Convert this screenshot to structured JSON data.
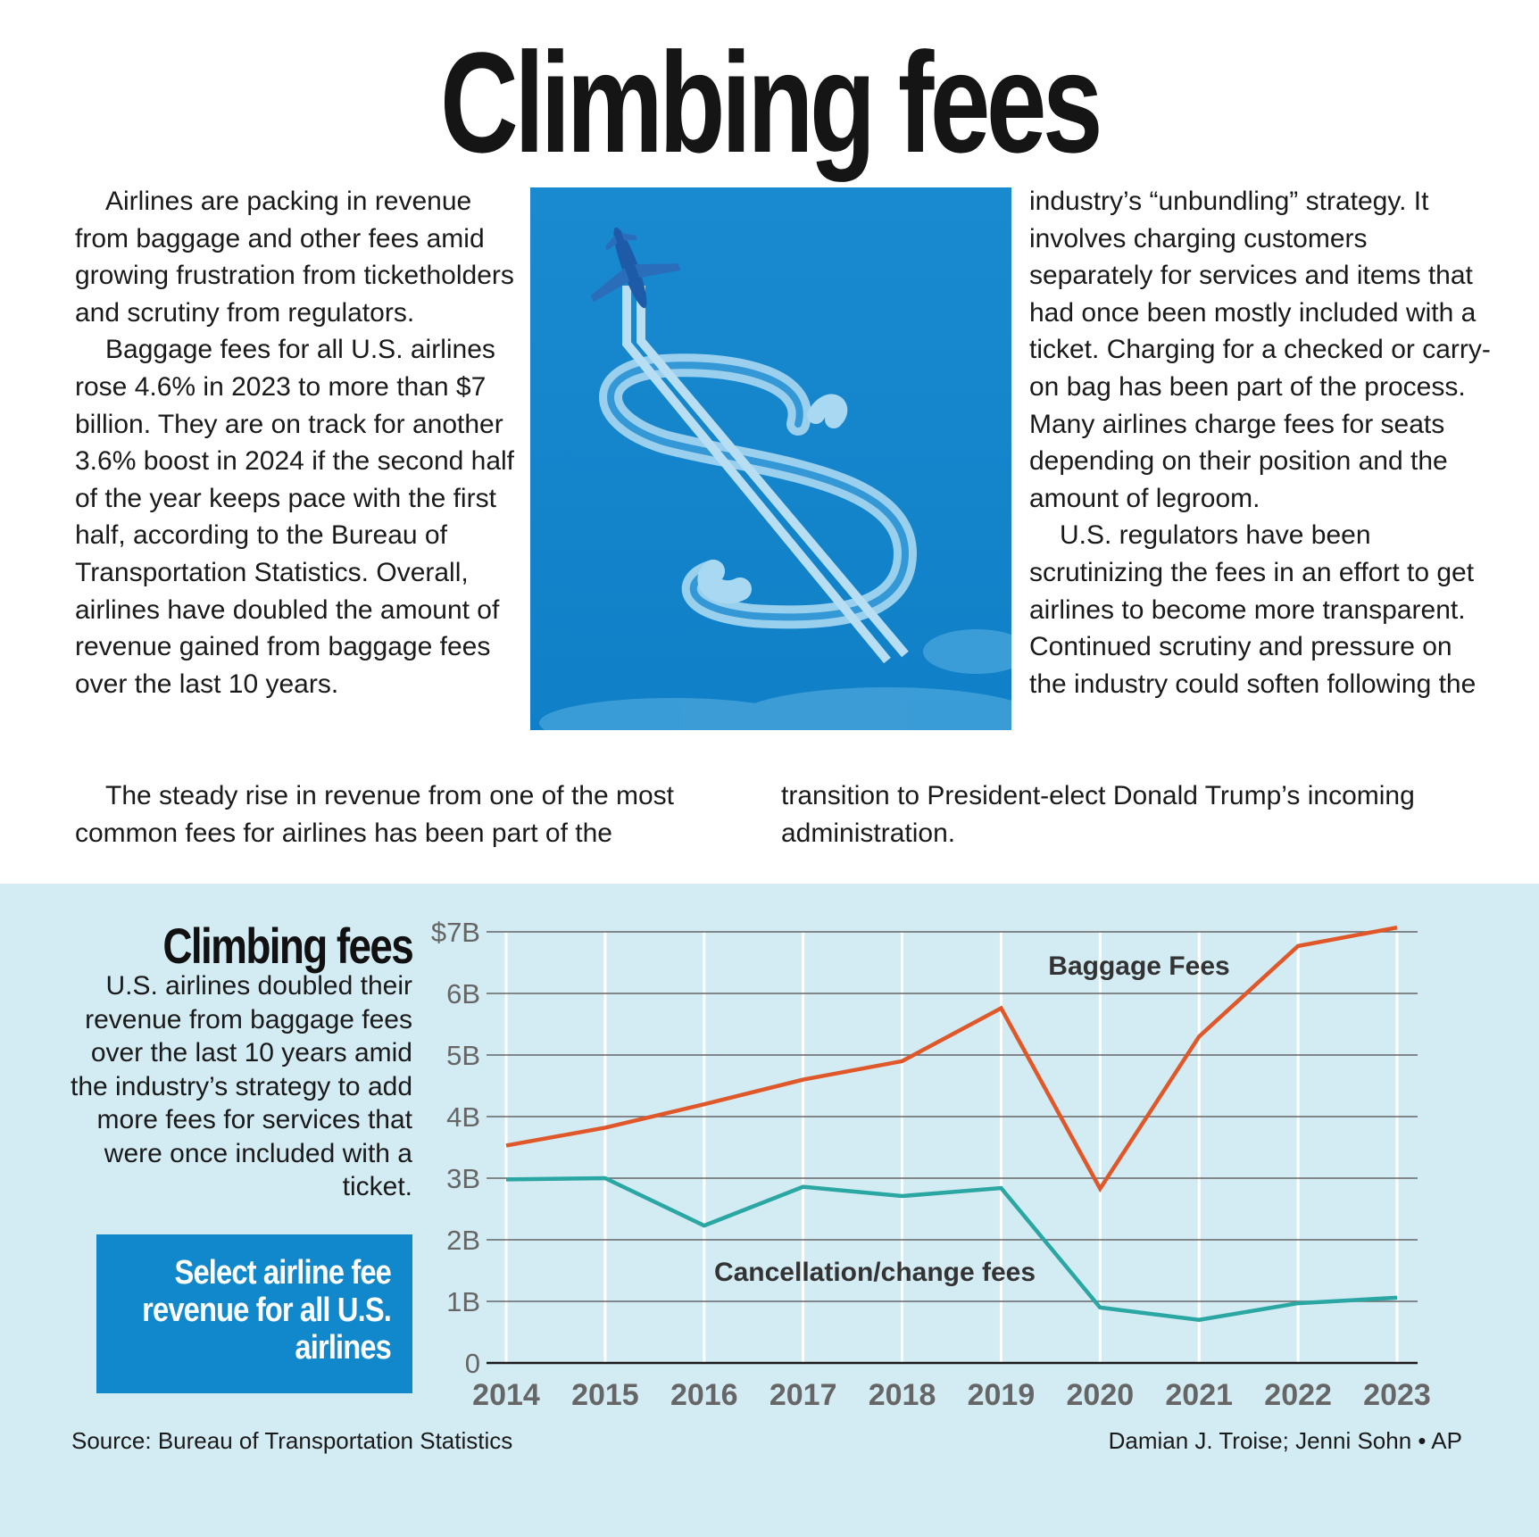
{
  "headline": "Climbing fees",
  "article": {
    "left_paragraphs": [
      "Airlines are packing in revenue from baggage and other fees amid growing frustration from ticketholders and scrutiny from regulators.",
      "Baggage fees for all U.S. airlines rose 4.6% in 2023 to more than $7 billion. They are on track for another 3.6% boost in 2024 if the second half of the year keeps pace with the first half, according to the Bureau of Transportation Statistics. Overall, airlines have doubled the amount of revenue gained from baggage fees over the last 10 years."
    ],
    "bottom_left": "The steady rise in revenue from one of the most common fees for airlines has been part of the",
    "right_paragraphs": [
      "industry’s “unbundling” strategy. It involves charging customers separately for services and items that had once been mostly included with a ticket. Charging for a checked or carry-on bag has been part of the process. Many airlines charge fees for seats depending on their position and the amount of legroom.",
      "U.S. regulators have been scrutinizing the fees in an effort to get airlines to become more transparent. Continued scrutiny and pressure on the industry could soften following the"
    ],
    "bottom_right": "transition to President-elect Donald Trump’s incoming administration."
  },
  "chart_panel": {
    "title": "Climbing fees",
    "description": "U.S. airlines doubled their revenue from baggage fees over the last 10 years amid the industry’s strategy to add more fees for services that were once included with a ticket.",
    "select_box": "Select airline fee revenue for all U.S. airlines",
    "source": "Source: Bureau of Transportation Statistics",
    "credit": "Damian J. Troise; Jenni Sohn • AP"
  },
  "colors": {
    "baggage": "#e0582a",
    "cancellation": "#2aa6a3",
    "panel_bg": "#d3ebf3",
    "select_box": "#1187cc",
    "photo_sky": "#1489cf"
  },
  "chart_data": {
    "type": "line",
    "title": "Climbing fees",
    "x": [
      "2014",
      "2015",
      "2016",
      "2017",
      "2018",
      "2019",
      "2020",
      "2021",
      "2022",
      "2023"
    ],
    "y_ticks": [
      "0",
      "1B",
      "2B",
      "3B",
      "4B",
      "5B",
      "6B",
      "$7B"
    ],
    "ylim": [
      0,
      7
    ],
    "series": [
      {
        "name": "Baggage Fees",
        "values": [
          3.53,
          3.82,
          4.2,
          4.6,
          4.9,
          5.76,
          2.83,
          5.3,
          6.77,
          7.07
        ]
      },
      {
        "name": "Cancellation/change fees",
        "values": [
          2.98,
          3.0,
          2.23,
          2.86,
          2.71,
          2.84,
          0.9,
          0.7,
          0.97,
          1.06
        ]
      }
    ]
  }
}
